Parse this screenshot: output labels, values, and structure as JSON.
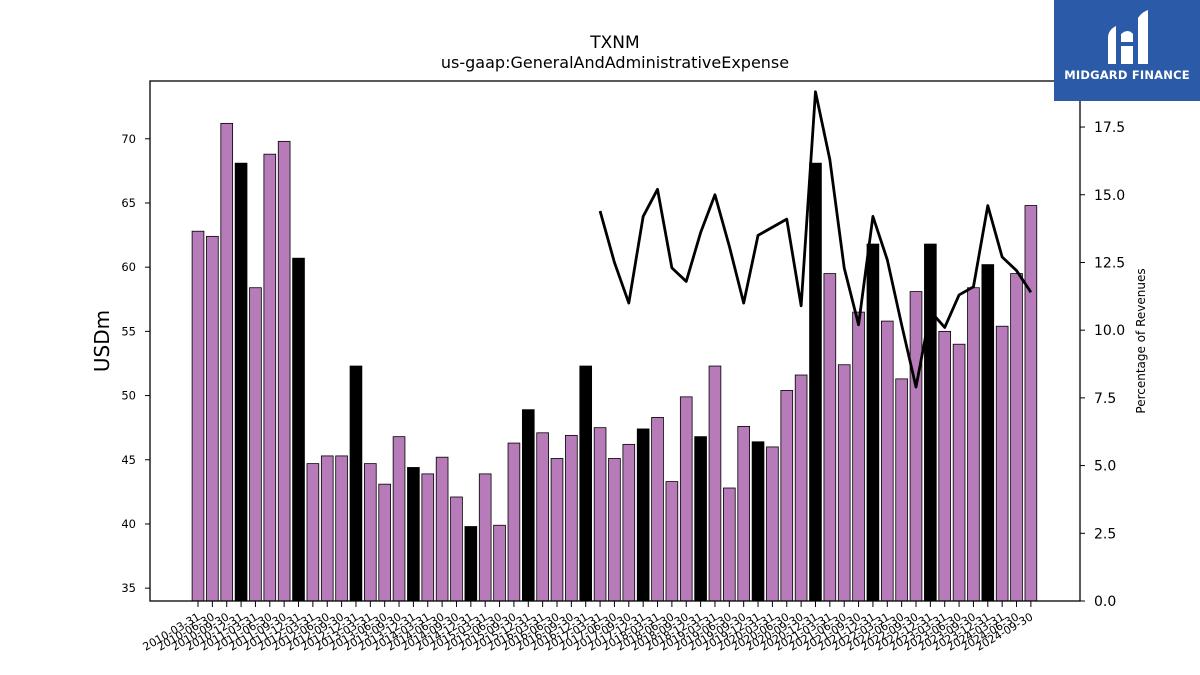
{
  "brand": {
    "name": "MIDGARD FINANCE",
    "bg_color": "#2a5aa8"
  },
  "chart_data": {
    "type": "bar",
    "title": "TXNM",
    "subtitle": "us-gaap:GeneralAndAdministrativeExpense",
    "ylabel": "USDm",
    "y2label": "Percentage of Revenues",
    "ylim": [
      34,
      74.5
    ],
    "y2lim": [
      0,
      19.2
    ],
    "yticks": [
      35,
      40,
      45,
      50,
      55,
      60,
      65,
      70
    ],
    "y2ticks": [
      "0.0",
      "2.5",
      "5.0",
      "7.5",
      "10.0",
      "12.5",
      "15.0",
      "17.5"
    ],
    "colors": {
      "quarter": "#b77bb9",
      "year_end": "#000000",
      "line": "#000000"
    },
    "categories": [
      "2010-03-31",
      "2010-06-30",
      "2010-09-30",
      "2010-12-31",
      "2011-03-31",
      "2011-06-30",
      "2011-09-30",
      "2011-12-31",
      "2012-03-31",
      "2012-06-30",
      "2012-09-30",
      "2012-12-31",
      "2013-03-31",
      "2013-06-30",
      "2013-09-30",
      "2013-12-31",
      "2014-03-31",
      "2014-06-30",
      "2014-09-30",
      "2014-12-31",
      "2015-03-31",
      "2015-06-30",
      "2015-09-30",
      "2015-12-31",
      "2016-03-31",
      "2016-06-30",
      "2016-09-30",
      "2016-12-31",
      "2017-03-31",
      "2017-06-30",
      "2017-09-30",
      "2017-12-31",
      "2018-03-31",
      "2018-06-30",
      "2018-09-30",
      "2018-12-31",
      "2019-03-31",
      "2019-06-30",
      "2019-09-30",
      "2019-12-31",
      "2020-03-31",
      "2020-06-30",
      "2020-09-30",
      "2020-12-31",
      "2021-03-31",
      "2021-06-30",
      "2021-09-30",
      "2021-12-31",
      "2022-03-31",
      "2022-06-30",
      "2022-09-30",
      "2022-12-31",
      "2023-03-31",
      "2023-06-30",
      "2023-09-30",
      "2023-12-31",
      "2024-03-31",
      "2024-06-30",
      "2024-09-30"
    ],
    "values": [
      62.8,
      62.4,
      71.2,
      68.1,
      58.4,
      68.8,
      69.8,
      60.7,
      44.7,
      45.3,
      45.3,
      52.3,
      44.7,
      43.1,
      46.8,
      44.4,
      43.9,
      45.2,
      42.1,
      39.8,
      43.9,
      39.9,
      46.3,
      48.9,
      47.1,
      45.1,
      46.9,
      52.3,
      47.5,
      45.1,
      46.2,
      47.4,
      48.3,
      43.3,
      49.9,
      46.8,
      52.3,
      42.8,
      47.6,
      46.4,
      46.0,
      50.4,
      51.6,
      68.1,
      59.5,
      52.4,
      56.5,
      61.8,
      55.8,
      51.3,
      58.1,
      61.8,
      55.0,
      54.0,
      58.4,
      60.2,
      55.4,
      59.5,
      64.8
    ],
    "highlight": [
      false,
      false,
      false,
      true,
      false,
      false,
      false,
      true,
      false,
      false,
      false,
      true,
      false,
      false,
      false,
      true,
      false,
      false,
      false,
      true,
      false,
      false,
      false,
      true,
      false,
      false,
      false,
      true,
      false,
      false,
      false,
      true,
      false,
      false,
      false,
      true,
      false,
      false,
      false,
      true,
      false,
      false,
      false,
      true,
      false,
      false,
      false,
      true,
      false,
      false,
      false,
      true,
      false,
      false,
      false,
      true,
      false,
      false,
      false
    ],
    "line_series": {
      "start_index": 28,
      "values": [
        14.4,
        12.5,
        11.0,
        14.2,
        15.2,
        12.3,
        11.8,
        13.6,
        15.0,
        13.1,
        11.0,
        13.5,
        13.8,
        14.1,
        10.9,
        18.8,
        16.3,
        12.3,
        10.2,
        14.2,
        12.6,
        10.2,
        7.9,
        10.7,
        10.1,
        11.3,
        11.6,
        14.6,
        12.7,
        12.2,
        11.4
      ]
    },
    "grid": false,
    "legend": "none"
  }
}
